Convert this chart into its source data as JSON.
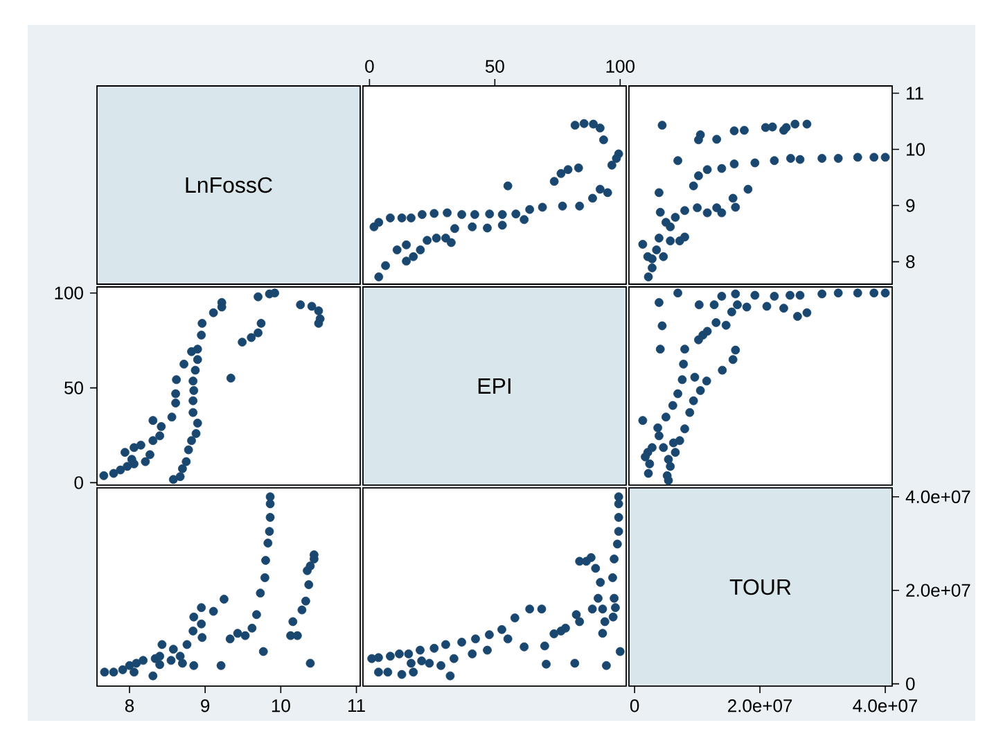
{
  "chart_data": [
    {
      "type": "other",
      "title": "LnFossC"
    },
    {
      "type": "scatter",
      "marker": "circle",
      "color": "#1a476f",
      "xlim": [
        -2.6,
        102.4
      ],
      "ylim": [
        7.6,
        11.13
      ],
      "xticks": [
        0,
        50,
        100
      ],
      "tick_labels": "x",
      "x": [
        1.8,
        3.7,
        8.3,
        12.9,
        16.6,
        21,
        25.8,
        31,
        36.8,
        42,
        47.9,
        53,
        58.4,
        63.9,
        69,
        77,
        83.8,
        89,
        92,
        95,
        34,
        41,
        47,
        53,
        61.7,
        3.7,
        6.4,
        11,
        14.7,
        14.7,
        17.5,
        20.3,
        23,
        26.7,
        30.4,
        32.6,
        73.7,
        76.4,
        79.2,
        83.4,
        55.2,
        82,
        85.6,
        89.3,
        92,
        93.4,
        96.7,
        98.5,
        99.4
      ],
      "values": [
        8.62,
        8.7,
        8.78,
        8.78,
        8.78,
        8.84,
        8.86,
        8.87,
        8.84,
        8.84,
        8.85,
        8.84,
        8.85,
        8.93,
        8.97,
        8.99,
        8.99,
        9.13,
        9.29,
        9.23,
        8.59,
        8.62,
        8.6,
        8.65,
        8.75,
        7.73,
        7.93,
        8.21,
        8.3,
        8.01,
        8.09,
        8.21,
        8.38,
        8.42,
        8.42,
        8.34,
        9.43,
        9.57,
        9.64,
        9.67,
        9.35,
        10.43,
        10.46,
        10.45,
        10.38,
        10.17,
        9.72,
        9.84,
        9.92
      ]
    },
    {
      "type": "scatter",
      "marker": "circle",
      "color": "#1a476f",
      "xlim": [
        -900000.0,
        41100000.0
      ],
      "ylim": [
        7.6,
        11.13
      ],
      "yticks": [
        8,
        9,
        10,
        11
      ],
      "tick_labels": "y",
      "x": [
        4400000.0,
        10200000.0,
        10500000.0,
        13100000.0,
        15900000.0,
        17500000.0,
        20900000.0,
        22000000.0,
        23800000.0,
        25600000.0,
        27500000.0,
        24200000.0,
        6900000.0,
        9400000.0,
        10200000.0,
        11600000.0,
        13900000.0,
        15900000.0,
        19200000.0,
        22300000.0,
        24900000.0,
        26400000.0,
        29900000.0,
        32500000.0,
        35600000.0,
        38200000.0,
        40000000.0,
        3900000.0,
        4100000.0,
        1300000.0,
        2100000.0,
        2200000.0,
        2800000.0,
        3500000.0,
        3900000.0,
        4600000.0,
        5000000.0,
        5700000.0,
        6500000.0,
        8000000.0,
        8000000.0,
        7200000.0,
        10000000.0,
        11600000.0,
        13100000.0,
        13900000.0,
        15700000.0,
        16100000.0,
        18100000.0,
        5700000.0,
        2800000.0
      ],
      "values": [
        10.43,
        10.17,
        10.26,
        10.18,
        10.33,
        10.34,
        10.39,
        10.4,
        10.34,
        10.45,
        10.45,
        10.39,
        9.8,
        9.35,
        9.53,
        9.64,
        9.66,
        9.74,
        9.76,
        9.8,
        9.84,
        9.82,
        9.84,
        9.84,
        9.86,
        9.86,
        9.86,
        9.23,
        8.88,
        8.31,
        8.09,
        7.73,
        7.89,
        8.21,
        8.42,
        8.09,
        8.7,
        8.62,
        8.79,
        8.91,
        8.44,
        8.37,
        8.96,
        8.87,
        8.96,
        8.87,
        9.13,
        8.97,
        9.29,
        8.37,
        8.05
      ]
    },
    {
      "type": "scatter",
      "marker": "circle",
      "color": "#1a476f",
      "xlim": [
        7.57,
        11.05
      ],
      "ylim": [
        -1.3,
        103.2
      ],
      "yticks": [
        0,
        50,
        100
      ],
      "tick_labels": "y",
      "x": [
        7.66,
        7.79,
        7.88,
        7.97,
        8.06,
        7.94,
        8.06,
        8.15,
        8.03,
        8.21,
        8.27,
        8.31,
        8.4,
        8.42,
        8.31,
        8.56,
        8.61,
        8.61,
        8.62,
        8.72,
        8.82,
        8.9,
        8.9,
        8.95,
        8.96,
        9.11,
        9.22,
        9.22,
        8.58,
        8.67,
        8.7,
        8.75,
        8.78,
        8.82,
        8.88,
        8.9,
        8.84,
        8.84,
        8.85,
        8.84,
        8.87,
        9.34,
        9.49,
        9.61,
        9.7,
        9.74,
        9.7,
        9.85,
        9.92,
        10.26,
        10.41,
        10.5,
        10.52,
        10.5
      ],
      "values": [
        3.7,
        4.9,
        6.7,
        8.6,
        9.9,
        16,
        18.5,
        19.8,
        12.3,
        11.1,
        14.8,
        22.2,
        24.7,
        29.6,
        32.8,
        34.6,
        42,
        46.9,
        54.3,
        62.5,
        69.1,
        70.4,
        64.9,
        77.8,
        84,
        89.6,
        95,
        92.6,
        1.7,
        3.2,
        7.4,
        11.1,
        17.3,
        22.2,
        25.9,
        31.4,
        37,
        43.2,
        48.6,
        53.6,
        59.3,
        55.1,
        74.1,
        76.5,
        79,
        84,
        98,
        99.5,
        100,
        93.8,
        93,
        90.6,
        86.4,
        84
      ]
    },
    {
      "type": "other",
      "title": "EPI"
    },
    {
      "type": "scatter",
      "marker": "circle",
      "color": "#1a476f",
      "xlim": [
        -900000.0,
        41100000.0
      ],
      "ylim": [
        -1.3,
        103.2
      ],
      "tick_labels": false,
      "x": [
        6900000.0,
        3900000.0,
        4400000.0,
        4100000.0,
        1300000.0,
        3700000.0,
        5000000.0,
        6100000.0,
        6900000.0,
        7600000.0,
        7800000.0,
        8000000.0,
        9400000.0,
        8800000.0,
        10500000.0,
        11500000.0,
        9600000.0,
        10200000.0,
        10900000.0,
        11600000.0,
        13000000.0,
        14000000.0,
        14600000.0,
        15700000.0,
        16100000.0,
        10300000.0,
        12700000.0,
        13900000.0,
        15500000.0,
        16100000.0,
        16400000.0,
        17900000.0,
        19200000.0,
        21100000.0,
        22300000.0,
        23800000.0,
        24800000.0,
        26000000.0,
        26400000.0,
        27500000.0,
        29900000.0,
        32500000.0,
        35600000.0,
        38200000.0,
        40000000.0,
        2100000.0,
        1700000.0,
        2400000.0,
        2200000.0,
        2800000.0,
        3900000.0,
        4600000.0,
        5400000.0,
        5200000.0,
        5700000.0,
        6500000.0,
        7200000.0,
        8000000.0,
        5400000.0,
        6200000.0
      ],
      "values": [
        100,
        95,
        82.7,
        70.4,
        32.8,
        28.9,
        34.6,
        40.7,
        46.9,
        54.3,
        62.5,
        70.4,
        43.2,
        37,
        48.6,
        53.6,
        55.6,
        75.3,
        77.8,
        79.8,
        84.4,
        59.3,
        83,
        64.9,
        69.9,
        93.8,
        93.8,
        98.3,
        90,
        99.5,
        93.8,
        92.6,
        98.8,
        93,
        98.3,
        92,
        98.8,
        87.7,
        98.8,
        89.6,
        99.5,
        100,
        100,
        100,
        100,
        16,
        13.6,
        9.9,
        4.9,
        18.5,
        24.7,
        18.5,
        12.3,
        3.7,
        8.6,
        16,
        22.2,
        28.4,
        1.2,
        21
      ]
    },
    {
      "type": "scatter",
      "marker": "circle",
      "color": "#1a476f",
      "xlim": [
        7.57,
        11.05
      ],
      "ylim": [
        -500000.0,
        41900000.0
      ],
      "xticks": [
        8,
        9,
        10,
        11
      ],
      "tick_labels": "x",
      "x": [
        7.67,
        7.79,
        7.91,
        8.0,
        8.09,
        8.06,
        8.18,
        8.31,
        8.34,
        8.4,
        8.43,
        8.4,
        8.55,
        8.58,
        8.67,
        8.7,
        8.76,
        8.84,
        8.85,
        8.95,
        8.96,
        8.95,
        8.85,
        9.11,
        9.21,
        9.25,
        9.33,
        9.43,
        9.53,
        9.62,
        9.68,
        9.73,
        9.77,
        9.79,
        9.8,
        9.83,
        9.85,
        9.86,
        9.86,
        9.86,
        10.13,
        10.16,
        10.28,
        10.33,
        10.37,
        10.35,
        10.39,
        10.44,
        10.44,
        10.39,
        10.22
      ],
      "values": [
        2500000.0,
        2500000.0,
        3000000.0,
        3900000.0,
        4400000.0,
        2500000.0,
        5000000.0,
        1700000.0,
        5400000.0,
        5900000.0,
        8400000.0,
        4100000.0,
        5000000.0,
        7400000.0,
        5900000.0,
        4400000.0,
        8400000.0,
        11300000.0,
        14300000.0,
        12800000.0,
        9900000.0,
        16300000.0,
        3900000.0,
        15500000.0,
        3900000.0,
        18100000.0,
        9600000.0,
        10800000.0,
        10300000.0,
        11900000.0,
        14800000.0,
        19400000.0,
        6900000.0,
        22700000.0,
        26400000.0,
        30100000.0,
        32600000.0,
        35600000.0,
        38500000.0,
        40000000.0,
        10300000.0,
        13300000.0,
        15800000.0,
        17700000.0,
        21200000.0,
        24200000.0,
        25200000.0,
        26700000.0,
        27600000.0,
        4400000.0,
        10300000.0
      ]
    },
    {
      "type": "scatter",
      "marker": "circle",
      "color": "#1a476f",
      "xlim": [
        -2.6,
        102.4
      ],
      "ylim": [
        -500000.0,
        41900000.0
      ],
      "tick_labels": false,
      "x": [
        0.9,
        3.6,
        3.6,
        8.3,
        7.3,
        11.9,
        12.9,
        15.6,
        16.6,
        17.5,
        20.2,
        20.8,
        23.9,
        25.8,
        28.5,
        30.4,
        32.2,
        33.7,
        36.8,
        41,
        42.3,
        47,
        47.8,
        52.8,
        55.2,
        58,
        61.7,
        63.9,
        68.7,
        69.9,
        70.5,
        73.6,
        76.4,
        78.2,
        81.9,
        82.5,
        83.8,
        83.8,
        86.5,
        88.4,
        88.9,
        90.2,
        91.2,
        92.1,
        93,
        93,
        93.9,
        94.5,
        97,
        97.6,
        97.2,
        98.1,
        97.6,
        98.9,
        99.4,
        99.4,
        99.4,
        99.4,
        100
      ],
      "values": [
        5400000.0,
        5600000.0,
        2500000.0,
        5900000.0,
        2500000.0,
        6400000.0,
        2000000.0,
        6400000.0,
        4400000.0,
        2500000.0,
        7200000.0,
        4900000.0,
        4400000.0,
        7600000.0,
        3900000.0,
        8400000.0,
        1700000.0,
        5400000.0,
        8900000.0,
        6400000.0,
        9600000.0,
        7200000.0,
        10500000.0,
        11600000.0,
        9600000.0,
        14100000.0,
        7900000.0,
        16000000.0,
        16000000.0,
        8100000.0,
        4200000.0,
        10700000.0,
        11300000.0,
        11900000.0,
        4400000.0,
        14800000.0,
        13300000.0,
        26200000.0,
        26200000.0,
        27000000.0,
        16000000.0,
        24700000.0,
        18300000.0,
        21700000.0,
        16000000.0,
        10800000.0,
        13300000.0,
        3900000.0,
        22700000.0,
        26700000.0,
        14300000.0,
        16300000.0,
        18300000.0,
        29900000.0,
        32600000.0,
        35600000.0,
        38500000.0,
        40000000.0,
        6900000.0
      ]
    },
    {
      "type": "scatter",
      "title": "TOUR",
      "xlim": [
        -900000.0,
        41100000.0
      ],
      "ylim": [
        -500000.0,
        41900000.0
      ],
      "xticks": [
        0,
        {
          "value": 20000000.0,
          "label": "2.0e+07"
        },
        {
          "value": 40000000.0,
          "label": "4.0e+07"
        }
      ],
      "yticks": [
        0,
        {
          "value": 20000000.0,
          "label": "2.0e+07"
        },
        {
          "value": 40000000.0,
          "label": "4.0e+07"
        }
      ]
    }
  ]
}
